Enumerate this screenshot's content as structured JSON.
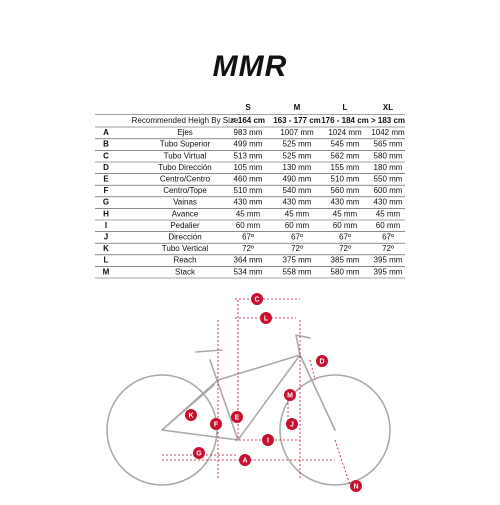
{
  "logo": "MMR",
  "table": {
    "columns": [
      "S",
      "M",
      "L",
      "XL"
    ],
    "recommended": {
      "label": "Recommended Heigh By Size",
      "values": [
        "< 164 cm",
        "163 - 177 cm",
        "176 - 184 cm",
        "> 183 cm"
      ]
    },
    "rows": [
      {
        "letter": "A",
        "name": "Ejes",
        "values": [
          "983 mm",
          "1007 mm",
          "1024 mm",
          "1042 mm"
        ]
      },
      {
        "letter": "B",
        "name": "Tubo Superior",
        "values": [
          "499 mm",
          "525 mm",
          "545 mm",
          "565 mm"
        ]
      },
      {
        "letter": "C",
        "name": "Tubo Virtual",
        "values": [
          "513 mm",
          "525 mm",
          "562 mm",
          "580 mm"
        ]
      },
      {
        "letter": "D",
        "name": "Tubo Dirección",
        "values": [
          "105 mm",
          "130 mm",
          "155 mm",
          "180 mm"
        ]
      },
      {
        "letter": "E",
        "name": "Centro/Centro",
        "values": [
          "460 mm",
          "490 mm",
          "510 mm",
          "550 mm"
        ]
      },
      {
        "letter": "F",
        "name": "Centro/Tope",
        "values": [
          "510 mm",
          "540 mm",
          "560 mm",
          "600 mm"
        ]
      },
      {
        "letter": "G",
        "name": "Vainas",
        "values": [
          "430 mm",
          "430 mm",
          "430 mm",
          "430 mm"
        ]
      },
      {
        "letter": "H",
        "name": "Avance",
        "values": [
          "45 mm",
          "45 mm",
          "45 mm",
          "45 mm"
        ]
      },
      {
        "letter": "I",
        "name": "Pedalier",
        "values": [
          "60 mm",
          "60 mm",
          "60 mm",
          "60 mm"
        ]
      },
      {
        "letter": "J",
        "name": "Dirección",
        "values": [
          "67º",
          "67º",
          "67º",
          "67º"
        ]
      },
      {
        "letter": "K",
        "name": "Tubo Vertical",
        "values": [
          "72º",
          "72º",
          "72º",
          "72º"
        ]
      },
      {
        "letter": "L",
        "name": "Reach",
        "values": [
          "364 mm",
          "375 mm",
          "385 mm",
          "395 mm"
        ]
      },
      {
        "letter": "M",
        "name": "Stack",
        "values": [
          "534 mm",
          "558 mm",
          "580 mm",
          "395 mm"
        ]
      }
    ]
  },
  "diagram": {
    "labels": [
      "C",
      "L",
      "D",
      "M",
      "K",
      "E",
      "F",
      "J",
      "I",
      "G",
      "A",
      "N"
    ]
  }
}
